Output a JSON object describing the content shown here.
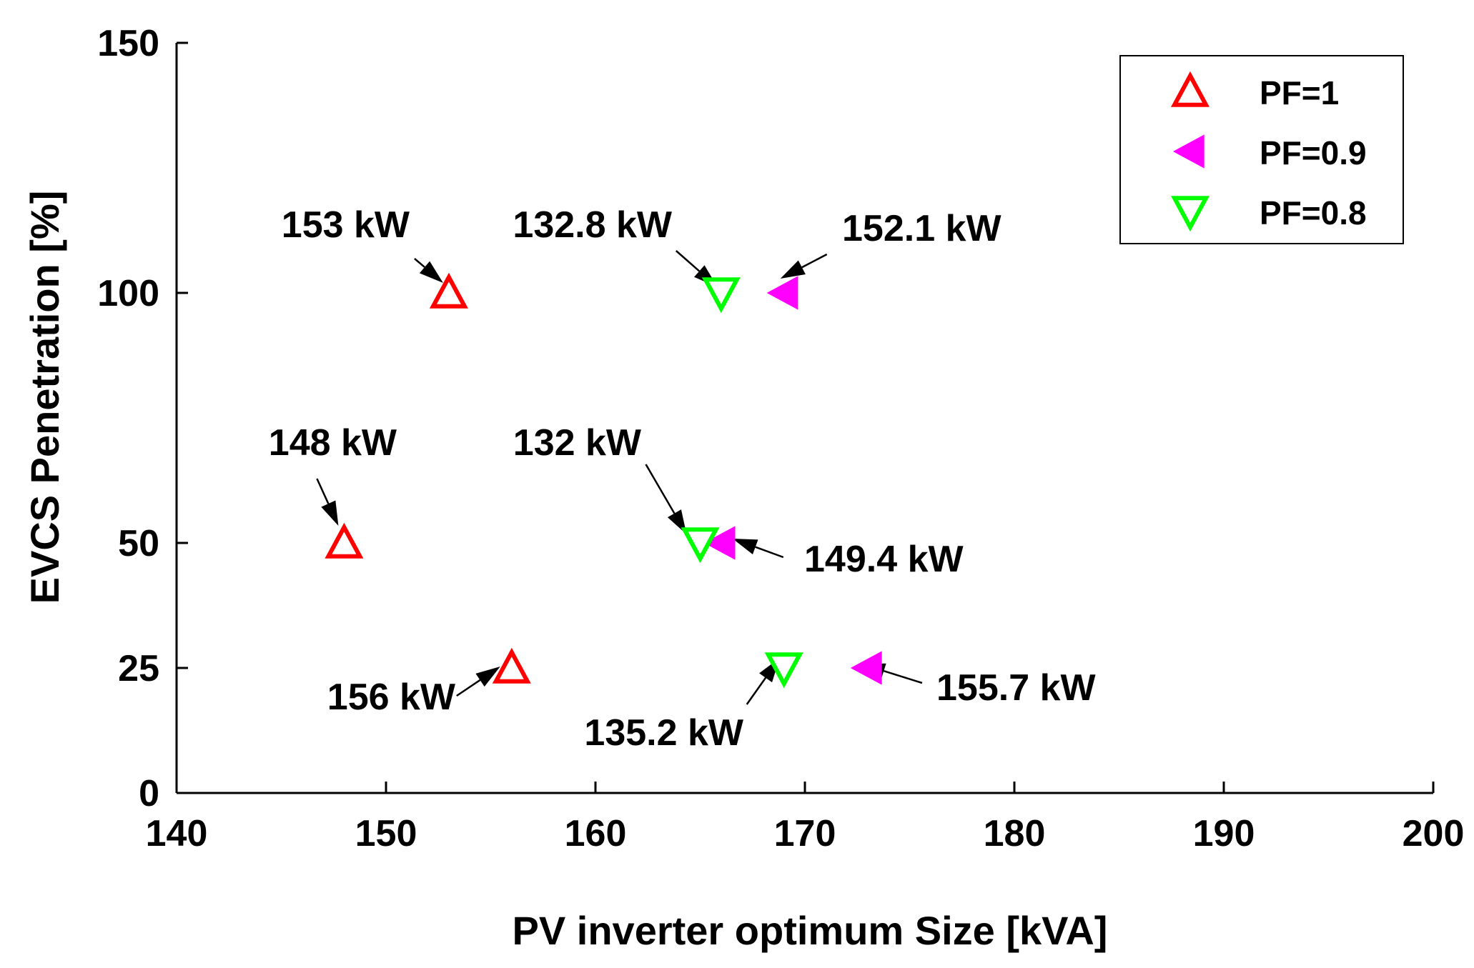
{
  "chart_data": {
    "type": "scatter",
    "title": "",
    "xlabel": "PV inverter optimum Size [kVA]",
    "ylabel": "EVCS Penetration [%]",
    "xlim": [
      140,
      200
    ],
    "ylim": [
      0,
      150
    ],
    "xticks": [
      "140",
      "150",
      "160",
      "170",
      "180",
      "190",
      "200"
    ],
    "yticks": [
      "0",
      "25",
      "50",
      "100",
      "150"
    ],
    "legend_position": "top-right",
    "series": [
      {
        "name": "PF=1",
        "marker": "triangle-up-open",
        "color": "#ff0000",
        "points": [
          {
            "x": 153,
            "y": 100,
            "label": "153 kW"
          },
          {
            "x": 148,
            "y": 50,
            "label": "148 kW"
          },
          {
            "x": 156,
            "y": 25,
            "label": "156 kW"
          }
        ]
      },
      {
        "name": "PF=0.9",
        "marker": "triangle-left-filled",
        "color": "#ff00ff",
        "points": [
          {
            "x": 169,
            "y": 100,
            "label": "152.1 kW"
          },
          {
            "x": 166,
            "y": 50,
            "label": "149.4 kW"
          },
          {
            "x": 173,
            "y": 25,
            "label": "155.7 kW"
          }
        ]
      },
      {
        "name": "PF=0.8",
        "marker": "triangle-down-open",
        "color": "#00ff00",
        "points": [
          {
            "x": 166,
            "y": 100,
            "label": "132.8 kW"
          },
          {
            "x": 165,
            "y": 50,
            "label": "132 kW"
          },
          {
            "x": 169,
            "y": 25,
            "label": "135.2 kW"
          }
        ]
      }
    ]
  }
}
